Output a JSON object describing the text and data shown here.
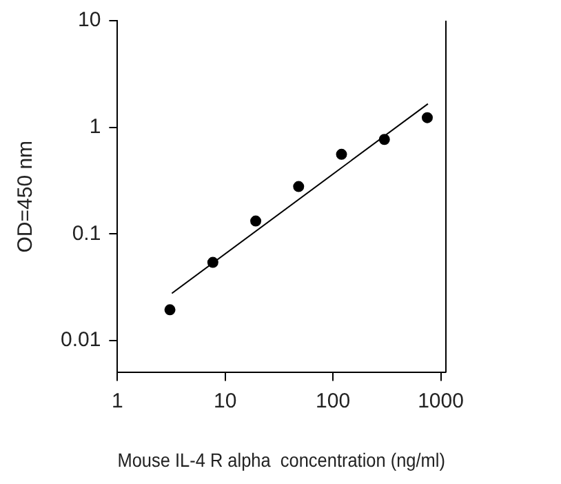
{
  "chart_data": {
    "type": "scatter",
    "xlabel": "Mouse IL-4 R alpha  concentration (ng/ml)",
    "ylabel": "OD=450 nm",
    "log": "xy",
    "grid": false,
    "legend": false,
    "marker": "circle",
    "xlim": [
      1,
      1100
    ],
    "xticks": [
      1,
      10,
      100,
      1000
    ],
    "ylim": [
      0.005,
      10
    ],
    "yticks": [
      0.01,
      0.1,
      1,
      10
    ],
    "series": [
      {
        "color": "#000000",
        "x": [
          3.07,
          7.68,
          19.2,
          48,
          120,
          300,
          750
        ],
        "values": [
          0.0194,
          0.054,
          0.132,
          0.278,
          0.558,
          0.769,
          1.23
        ]
      },
      {
        "type": "line",
        "color": "#000000",
        "marker": "none",
        "x": [
          3.2,
          760
        ],
        "values": [
          0.0277,
          1.66
        ]
      }
    ]
  }
}
